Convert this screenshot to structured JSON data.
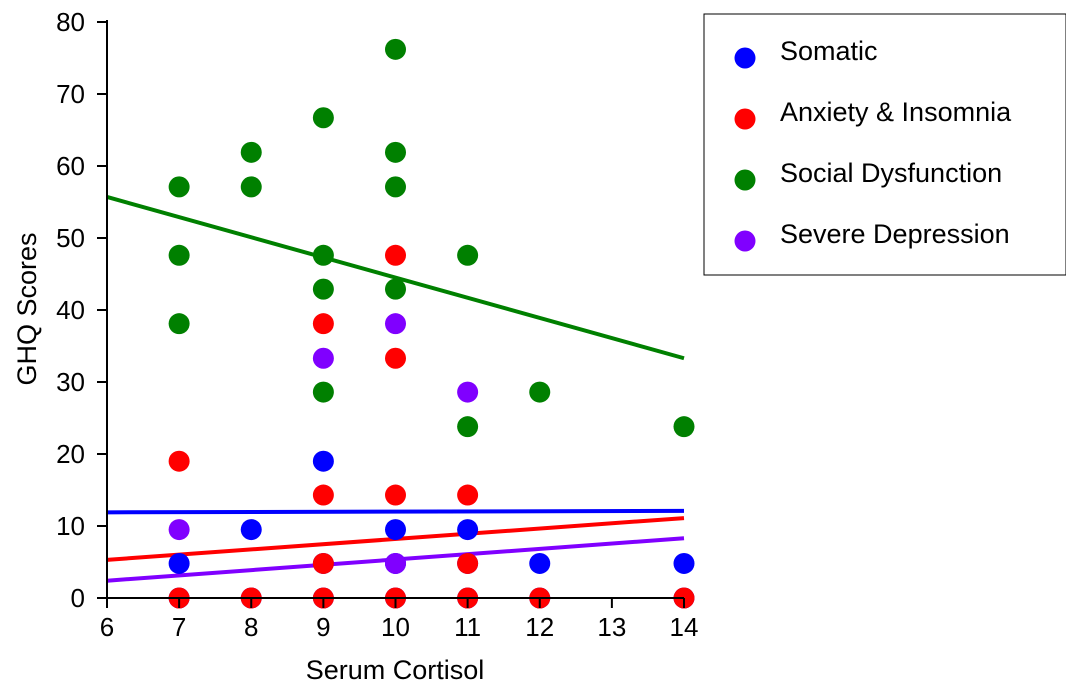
{
  "chart_data": {
    "type": "scatter",
    "xlabel": "Serum Cortisol",
    "ylabel": "GHQ Scores",
    "xlim": [
      6,
      14
    ],
    "ylim": [
      0,
      80
    ],
    "xticks": [
      6,
      7,
      8,
      9,
      10,
      11,
      12,
      13,
      14
    ],
    "yticks": [
      0,
      10,
      20,
      30,
      40,
      50,
      60,
      70,
      80
    ],
    "grid": false,
    "legend": "top-right",
    "series": [
      {
        "name": "Somatic",
        "color": "#0000ff",
        "points": [
          [
            7,
            4.8
          ],
          [
            7,
            0
          ],
          [
            8,
            9.5
          ],
          [
            8,
            0
          ],
          [
            9,
            19
          ],
          [
            9,
            4.8
          ],
          [
            9,
            0
          ],
          [
            10,
            9.5
          ],
          [
            10,
            4.8
          ],
          [
            10,
            0
          ],
          [
            11,
            9.5
          ],
          [
            11,
            4.8
          ],
          [
            11,
            0
          ],
          [
            12,
            4.8
          ],
          [
            12,
            0
          ],
          [
            14,
            4.8
          ],
          [
            14,
            0
          ]
        ],
        "trend": [
          [
            6,
            11.9
          ],
          [
            14,
            12.1
          ]
        ]
      },
      {
        "name": "Social Dysfunction",
        "color": "#008000",
        "points": [
          [
            7,
            57.1
          ],
          [
            7,
            47.6
          ],
          [
            7,
            38.1
          ],
          [
            8,
            61.9
          ],
          [
            8,
            57.1
          ],
          [
            9,
            66.7
          ],
          [
            9,
            47.6
          ],
          [
            9,
            42.9
          ],
          [
            9,
            28.6
          ],
          [
            10,
            76.2
          ],
          [
            10,
            61.9
          ],
          [
            10,
            57.1
          ],
          [
            10,
            42.9
          ],
          [
            11,
            47.6
          ],
          [
            11,
            23.8
          ],
          [
            12,
            28.6
          ],
          [
            14,
            23.8
          ]
        ],
        "trend": [
          [
            6,
            55.7
          ],
          [
            14,
            33.3
          ]
        ]
      },
      {
        "name": "Anxiety & Insomnia",
        "color": "#ff0000",
        "points": [
          [
            7,
            19
          ],
          [
            7,
            0
          ],
          [
            8,
            0
          ],
          [
            9,
            38.1
          ],
          [
            9,
            14.3
          ],
          [
            9,
            4.8
          ],
          [
            9,
            0
          ],
          [
            10,
            47.6
          ],
          [
            10,
            33.3
          ],
          [
            10,
            14.3
          ],
          [
            10,
            0
          ],
          [
            11,
            14.3
          ],
          [
            11,
            4.8
          ],
          [
            11,
            0
          ],
          [
            12,
            0
          ],
          [
            14,
            0
          ]
        ],
        "trend": [
          [
            6,
            5.3
          ],
          [
            14,
            11.1
          ]
        ]
      },
      {
        "name": "Severe Depression",
        "color": "#8000ff",
        "points": [
          [
            7,
            9.5
          ],
          [
            9,
            33.3
          ],
          [
            10,
            38.1
          ],
          [
            10,
            4.8
          ],
          [
            11,
            28.6
          ]
        ],
        "trend": [
          [
            6,
            2.4
          ],
          [
            14,
            8.3
          ]
        ]
      }
    ],
    "legend_order": [
      "Somatic",
      "Anxiety & Insomnia",
      "Social Dysfunction",
      "Severe Depression"
    ]
  }
}
